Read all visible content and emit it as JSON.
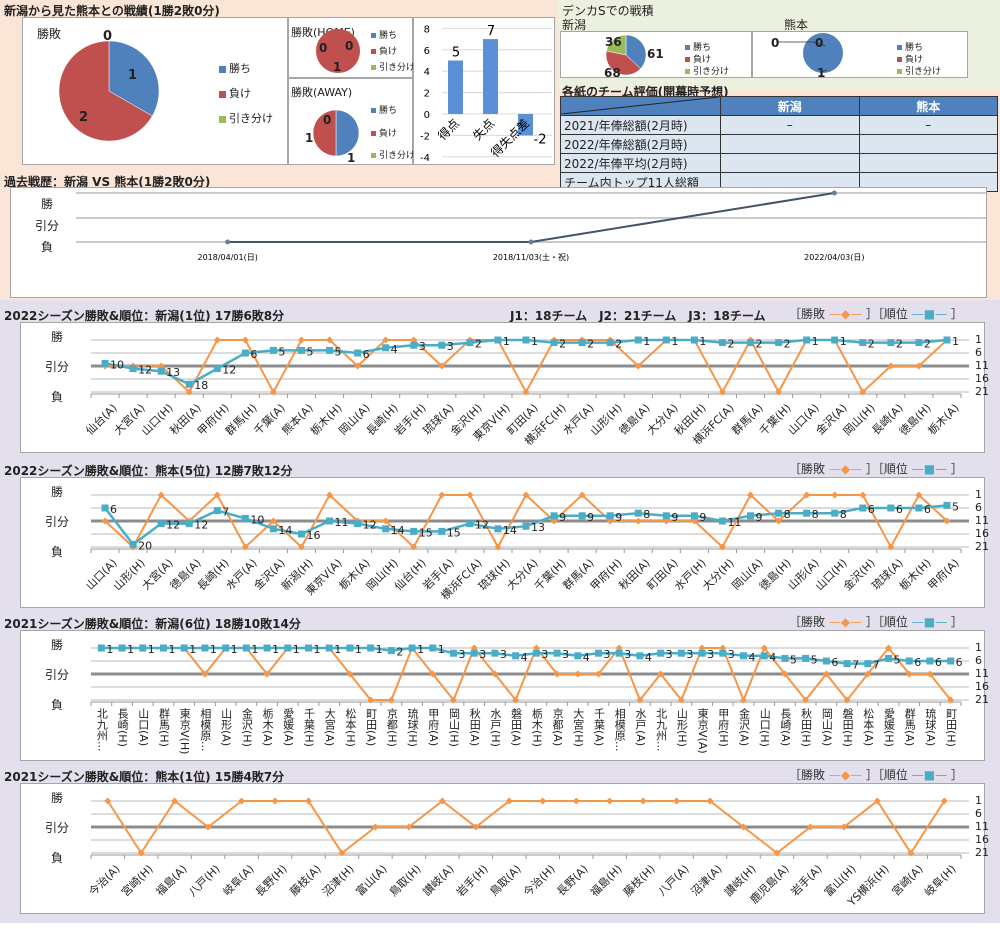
{
  "h2h": {
    "title": "新潟から見た熊本との戦績(1勝2敗0分)",
    "legend": [
      "勝ち",
      "負け",
      "引き分け"
    ],
    "overall": {
      "title": "勝敗",
      "win": 1,
      "loss": 2,
      "draw": 0
    },
    "home": {
      "title": "勝敗(HOME)",
      "win": 0,
      "loss": 1,
      "draw": 0
    },
    "away": {
      "title": "勝敗(AWAY)",
      "win": 1,
      "loss": 1,
      "draw": 0
    },
    "goals": {
      "categories": [
        "得点",
        "失点",
        "得失点差"
      ],
      "values": [
        5,
        7,
        -2
      ],
      "ticks": [
        8,
        6,
        4,
        2,
        0,
        -2,
        -4
      ]
    }
  },
  "denka": {
    "title": "デンカSでの戦積",
    "teams": [
      {
        "name": "新潟",
        "win": 61,
        "loss": 68,
        "draw": 36
      },
      {
        "name": "熊本",
        "win": 1,
        "loss": 0,
        "draw": 0
      }
    ]
  },
  "evaluation": {
    "title": "各紙のチーム評価(開幕時予想)",
    "columns": [
      "新潟",
      "熊本"
    ],
    "rows": [
      {
        "label": "2021/年俸総額(2月時)",
        "values": [
          "–",
          "–"
        ]
      },
      {
        "label": "2022/年俸総額(2月時)",
        "values": [
          "",
          ""
        ]
      },
      {
        "label": "2022/年俸平均(2月時)",
        "values": [
          "",
          ""
        ]
      },
      {
        "label": "チーム内トップ11人総額",
        "values": [
          "",
          ""
        ]
      }
    ]
  },
  "history": {
    "title": "過去戦歴：新潟 VS 熊本(1勝2敗0分)",
    "ylabels": [
      "勝",
      "引分",
      "負"
    ],
    "dates": [
      "2018/04/01(日)",
      "2018/11/03(土・祝)",
      "2022/04/03(日)"
    ],
    "results": [
      "L",
      "L",
      "W"
    ]
  },
  "league_info": "J1：18チーム　J2：21チーム　J3：18チーム",
  "legend": {
    "result": "勝敗",
    "rank": "順位"
  },
  "colors": {
    "win": "#4f81bd",
    "loss": "#c0504d",
    "draw": "#9bbb59",
    "result_line": "#f79646",
    "rank_line": "#4bacc6"
  },
  "ylabels": [
    "勝",
    "引分",
    "負"
  ],
  "rank_axis": [
    1,
    6,
    11,
    16,
    21
  ],
  "chart_data": [
    {
      "type": "line",
      "title": "2022シーズン勝敗&順位：新潟(1位) 17勝6敗8分",
      "categories": [
        "仙台(A)",
        "大宮(A)",
        "山口(H)",
        "秋田(A)",
        "甲府(H)",
        "群馬(H)",
        "千葉(A)",
        "熊本(A)",
        "栃木(H)",
        "岡山(A)",
        "長崎(H)",
        "岩手(H)",
        "琉球(A)",
        "金沢(H)",
        "東京V(H)",
        "町田(A)",
        "横浜FC(H)",
        "水戸(A)",
        "山形(H)",
        "徳島(A)",
        "大分(A)",
        "秋田(H)",
        "横浜FC(A)",
        "群馬(A)",
        "千葉(H)",
        "山口(A)",
        "金沢(A)",
        "岡山(H)",
        "長崎(A)",
        "徳島(H)",
        "栃木(A)"
      ],
      "results": [
        "D",
        "D",
        "D",
        "L",
        "W",
        "W",
        "L",
        "W",
        "W",
        "D",
        "W",
        "W",
        "D",
        "W",
        "W",
        "L",
        "W",
        "W",
        "W",
        "D",
        "W",
        "W",
        "L",
        "W",
        "L",
        "W",
        "W",
        "L",
        "D",
        "D",
        "W"
      ],
      "ranks": [
        10,
        12,
        13,
        18,
        12,
        6,
        5,
        5,
        5,
        6,
        4,
        3,
        3,
        2,
        1,
        1,
        2,
        2,
        2,
        1,
        1,
        1,
        2,
        2,
        2,
        1,
        1,
        2,
        2,
        2,
        1
      ],
      "label_style": "diagonal"
    },
    {
      "type": "line",
      "title": "2022シーズン勝敗&順位：熊本(5位) 12勝7敗12分",
      "categories": [
        "山口(A)",
        "山形(H)",
        "大宮(A)",
        "徳島(A)",
        "長崎(H)",
        "水戸(A)",
        "金沢(A)",
        "新潟(H)",
        "東京V(A)",
        "栃木(A)",
        "岡山(H)",
        "仙台(H)",
        "岩手(A)",
        "横浜FC(A)",
        "琉球(H)",
        "大分(A)",
        "千葉(H)",
        "群馬(A)",
        "甲府(H)",
        "秋田(A)",
        "町田(A)",
        "水戸(H)",
        "大分(H)",
        "岡山(A)",
        "徳島(H)",
        "山形(A)",
        "山口(H)",
        "金沢(H)",
        "琉球(A)",
        "栃木(H)",
        "甲府(A)"
      ],
      "results": [
        "D",
        "L",
        "W",
        "D",
        "W",
        "L",
        "D",
        "L",
        "W",
        "D",
        "D",
        "L",
        "W",
        "W",
        "L",
        "W",
        "D",
        "W",
        "D",
        "D",
        "D",
        "D",
        "L",
        "W",
        "D",
        "W",
        "W",
        "W",
        "L",
        "W",
        "D"
      ],
      "ranks": [
        6,
        20,
        12,
        12,
        7,
        10,
        14,
        16,
        11,
        12,
        14,
        15,
        15,
        12,
        14,
        13,
        9,
        9,
        9,
        8,
        9,
        9,
        11,
        9,
        8,
        8,
        8,
        6,
        6,
        6,
        5
      ],
      "label_style": "diagonal"
    },
    {
      "type": "line",
      "title": "2021シーズン勝敗&順位：新潟(6位) 18勝10敗14分",
      "categories": [
        "北九州...",
        "長崎(H)",
        "山口(A)",
        "群馬(H)",
        "東京V(H)",
        "相模原...",
        "山形(A)",
        "金沢(H)",
        "栃木(A)",
        "愛媛(A)",
        "千葉(H)",
        "大宮(A)",
        "松本(H)",
        "町田(A)",
        "京都(H)",
        "琉球(H)",
        "甲府(A)",
        "岡山(H)",
        "秋田(A)",
        "水戸(H)",
        "磐田(A)",
        "栃木(H)",
        "京都(A)",
        "大宮(H)",
        "千葉(A)",
        "相模原...",
        "水戸(A)",
        "北九州...",
        "山形(H)",
        "東京V(A)",
        "甲府(H)",
        "金沢(A)",
        "山口(H)",
        "長崎(A)",
        "秋田(H)",
        "岡山(A)",
        "磐田(H)",
        "松本(A)",
        "愛媛(H)",
        "群馬(A)",
        "琉球(A)",
        "町田(H)"
      ],
      "results": [
        "W",
        "W",
        "W",
        "W",
        "W",
        "D",
        "W",
        "W",
        "D",
        "W",
        "W",
        "W",
        "D",
        "L",
        "L",
        "W",
        "D",
        "L",
        "W",
        "D",
        "L",
        "W",
        "D",
        "D",
        "D",
        "W",
        "L",
        "D",
        "L",
        "W",
        "W",
        "L",
        "W",
        "D",
        "L",
        "D",
        "L",
        "D",
        "W",
        "D",
        "D",
        "L"
      ],
      "ranks": [
        1,
        1,
        1,
        1,
        1,
        1,
        1,
        1,
        1,
        1,
        1,
        1,
        1,
        1,
        2,
        1,
        1,
        3,
        3,
        3,
        4,
        3,
        3,
        4,
        3,
        3,
        4,
        3,
        3,
        3,
        3,
        4,
        4,
        5,
        5,
        6,
        7,
        7,
        5,
        6,
        6,
        6
      ],
      "label_style": "vertical"
    },
    {
      "type": "line",
      "title": "2021シーズン勝敗&順位：熊本(1位) 15勝4敗7分",
      "categories": [
        "今治(A)",
        "宮崎(H)",
        "福島(A)",
        "八戸(H)",
        "岐阜(A)",
        "長野(H)",
        "藤枝(A)",
        "沼津(H)",
        "富山(A)",
        "鳥取(H)",
        "讃岐(A)",
        "岩手(H)",
        "鳥取(A)",
        "今治(H)",
        "長野(A)",
        "福島(H)",
        "藤枝(H)",
        "八戸(A)",
        "沼津(A)",
        "讃岐(H)",
        "鹿児島(A)",
        "岩手(A)",
        "富山(H)",
        "YS横浜(H)",
        "宮崎(A)",
        "岐阜(H)"
      ],
      "results": [
        "W",
        "L",
        "W",
        "D",
        "W",
        "W",
        "W",
        "L",
        "D",
        "D",
        "W",
        "D",
        "W",
        "W",
        "W",
        "W",
        "W",
        "W",
        "W",
        "D",
        "L",
        "D",
        "D",
        "W",
        "L",
        "W"
      ],
      "ranks": null,
      "label_style": "diagonal"
    }
  ]
}
